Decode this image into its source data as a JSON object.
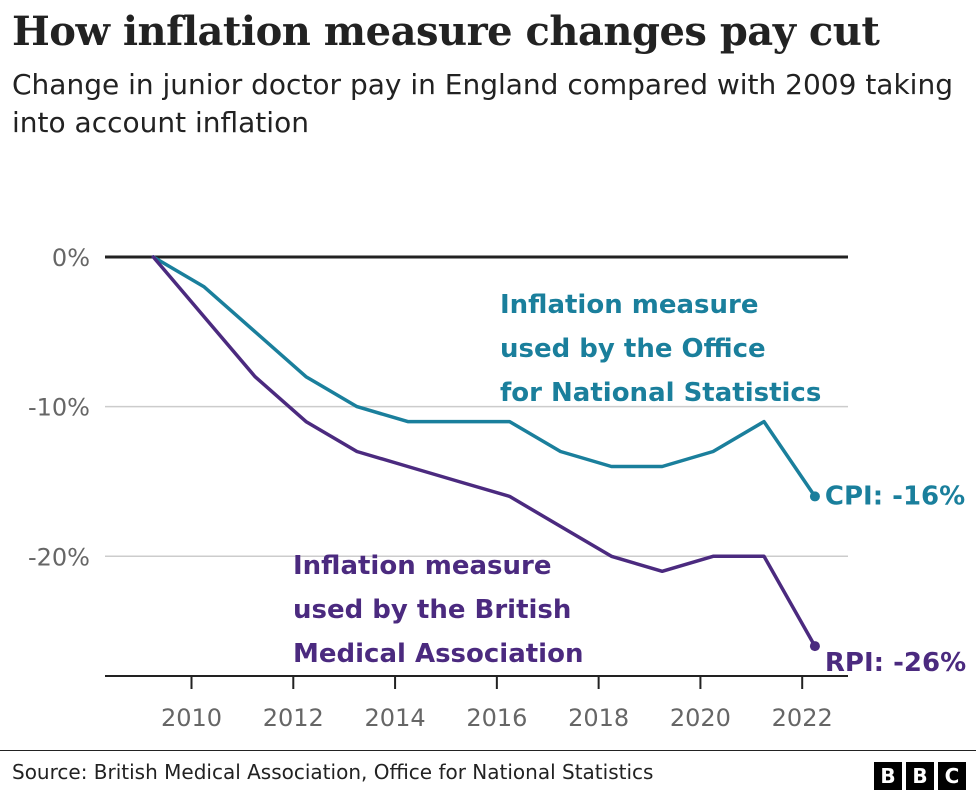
{
  "chart_data": {
    "type": "line",
    "title": "How inflation measure changes pay cut",
    "subtitle": "Change in junior doctor pay in England compared with 2009 taking into account inflation",
    "xlabel": "",
    "ylabel": "",
    "x": [
      2009.25,
      2010.25,
      2011.25,
      2012.25,
      2013.25,
      2014.25,
      2015.25,
      2016.25,
      2017.25,
      2018.25,
      2019.25,
      2020.25,
      2021.25,
      2022.25
    ],
    "xlim": [
      2008.3,
      2022.9
    ],
    "ylim": [
      -28,
      0
    ],
    "xticks": [
      2010,
      2012,
      2014,
      2016,
      2018,
      2020,
      2022
    ],
    "xtick_labels": [
      "2010",
      "2012",
      "2014",
      "2016",
      "2018",
      "2020",
      "2022"
    ],
    "yticks": [
      0,
      -10,
      -20
    ],
    "ytick_labels": [
      "0%",
      "-10%",
      "-20%"
    ],
    "grid": true,
    "series": [
      {
        "name": "CPI",
        "color": "#1a7f9c",
        "values": [
          0,
          -2,
          -5,
          -8,
          -10,
          -11,
          -11,
          -11,
          -13,
          -14,
          -14,
          -13,
          -11,
          -16
        ],
        "end_label": "CPI: -16%",
        "annotation": [
          "Inflation measure",
          "used by the Office",
          "for National Statistics"
        ]
      },
      {
        "name": "RPI",
        "color": "#4b2a7f",
        "values": [
          0,
          -4,
          -8,
          -11,
          -13,
          -14,
          -15,
          -16,
          -18,
          -20,
          -21,
          -20,
          -20,
          -26
        ],
        "end_label": "RPI: -26%",
        "annotation": [
          "Inflation measure",
          "used by the British",
          "Medical Association"
        ]
      }
    ]
  },
  "footer": {
    "source": "Source: British Medical Association, Office for National Statistics",
    "logo_letters": [
      "B",
      "B",
      "C"
    ]
  }
}
